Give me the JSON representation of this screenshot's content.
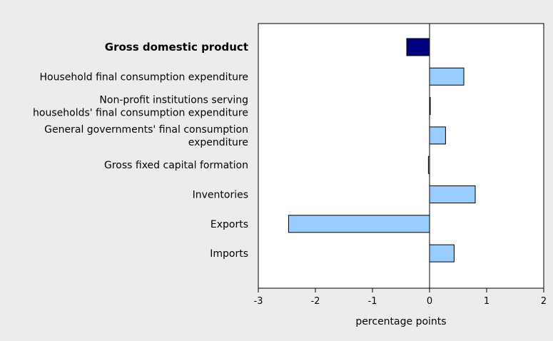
{
  "chart_data": {
    "type": "bar",
    "orientation": "horizontal",
    "xlabel": "percentage points",
    "xlim": [
      -3,
      2
    ],
    "xticks": [
      "-3",
      "-2",
      "-1",
      "0",
      "1",
      "2"
    ],
    "xtick_values": [
      -3,
      -2,
      -1,
      0,
      1,
      2
    ],
    "categories": [
      {
        "lines": [
          "Gross domestic product"
        ],
        "value": -0.4,
        "bold": true,
        "color": "#000080"
      },
      {
        "lines": [
          "Household final consumption expenditure"
        ],
        "value": 0.6,
        "bold": false,
        "color": "#99ccff"
      },
      {
        "lines": [
          "Non-profit institutions serving",
          "households' final consumption expenditure"
        ],
        "value": 0.0,
        "bold": false,
        "color": "#99ccff"
      },
      {
        "lines": [
          "General governments' final consumption",
          "expenditure"
        ],
        "value": 0.28,
        "bold": false,
        "color": "#99ccff"
      },
      {
        "lines": [
          "Gross fixed capital formation"
        ],
        "value": -0.02,
        "bold": false,
        "color": "#99ccff"
      },
      {
        "lines": [
          "Inventories"
        ],
        "value": 0.8,
        "bold": false,
        "color": "#99ccff"
      },
      {
        "lines": [
          "Exports"
        ],
        "value": -2.47,
        "bold": false,
        "color": "#99ccff"
      },
      {
        "lines": [
          "Imports"
        ],
        "value": 0.43,
        "bold": false,
        "color": "#99ccff"
      }
    ]
  }
}
